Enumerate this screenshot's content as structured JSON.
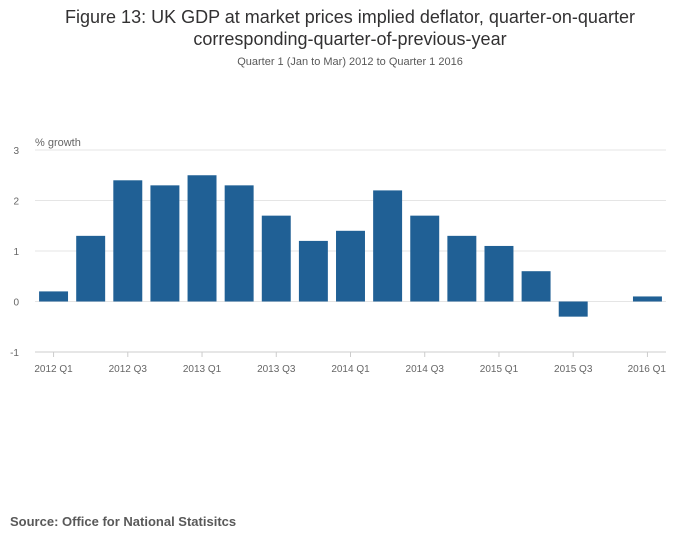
{
  "title_line1": "Figure 13: UK GDP at market prices implied deflator, quarter-on-quarter",
  "title_line2": "corresponding-quarter-of-previous-year",
  "subtitle": "Quarter 1 (Jan to Mar) 2012 to Quarter 1 2016",
  "source": "Source: Office for National Statisitcs",
  "colors": {
    "bar": "#206095",
    "grid": "#e5e5e5",
    "axis": "#cccccc"
  },
  "chart_data": {
    "type": "bar",
    "ylabel": "% growth",
    "ylim": [
      -1,
      3
    ],
    "yticks": [
      -1,
      0,
      1,
      2,
      3
    ],
    "grid": true,
    "categories": [
      "2012 Q1",
      "2012 Q2",
      "2012 Q3",
      "2012 Q4",
      "2013 Q1",
      "2013 Q2",
      "2013 Q3",
      "2013 Q4",
      "2014 Q1",
      "2014 Q2",
      "2014 Q3",
      "2014 Q4",
      "2015 Q1",
      "2015 Q2",
      "2015 Q3",
      "2015 Q4",
      "2016 Q1"
    ],
    "tick_labels": [
      "2012 Q1",
      "",
      "2012 Q3",
      "",
      "2013 Q1",
      "",
      "2013 Q3",
      "",
      "2014 Q1",
      "",
      "2014 Q3",
      "",
      "2015 Q1",
      "",
      "2015 Q3",
      "",
      "2016 Q1"
    ],
    "values": [
      0.2,
      1.3,
      2.4,
      2.3,
      2.5,
      2.3,
      1.7,
      1.2,
      1.4,
      2.2,
      1.7,
      1.3,
      1.1,
      0.6,
      -0.3,
      0.0,
      0.1
    ]
  }
}
